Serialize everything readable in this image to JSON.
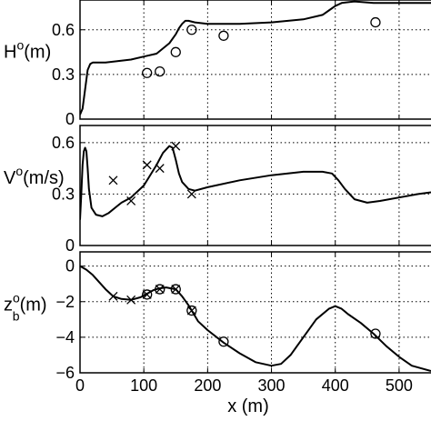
{
  "chart_data": [
    {
      "type": "line",
      "ylabel": {
        "base": "H",
        "sup": "o",
        "unit": "(m)"
      },
      "xlim": [
        0,
        550
      ],
      "ylim": [
        0,
        0.8
      ],
      "yticks": [
        0,
        0.3,
        0.6
      ],
      "ytick_labels": [
        "0",
        "0.3",
        "0.6"
      ],
      "grid": true,
      "series": [
        {
          "style": "line",
          "x": [
            0,
            4,
            8,
            12,
            16,
            20,
            30,
            40,
            60,
            80,
            100,
            120,
            140,
            150,
            155,
            160,
            165,
            170,
            180,
            200,
            250,
            300,
            350,
            380,
            390,
            400,
            410,
            430,
            460,
            500,
            550
          ],
          "y": [
            0.03,
            0.07,
            0.2,
            0.33,
            0.37,
            0.38,
            0.38,
            0.38,
            0.39,
            0.4,
            0.42,
            0.44,
            0.51,
            0.57,
            0.61,
            0.64,
            0.66,
            0.66,
            0.65,
            0.64,
            0.64,
            0.65,
            0.67,
            0.7,
            0.73,
            0.76,
            0.78,
            0.79,
            0.78,
            0.78,
            0.78
          ]
        },
        {
          "style": "circle",
          "x": [
            105,
            125,
            150,
            175,
            225,
            463
          ],
          "y": [
            0.31,
            0.32,
            0.45,
            0.6,
            0.56,
            0.65
          ]
        }
      ]
    },
    {
      "type": "line",
      "ylabel": {
        "base": "V",
        "sup": "o",
        "unit": "(m/s)"
      },
      "xlim": [
        0,
        550
      ],
      "ylim": [
        0,
        0.7
      ],
      "yticks": [
        0,
        0.3,
        0.6
      ],
      "ytick_labels": [
        "0",
        "0.3",
        "0.6"
      ],
      "grid": true,
      "series": [
        {
          "style": "line",
          "x": [
            0,
            2,
            4,
            6,
            8,
            10,
            12,
            14,
            18,
            25,
            35,
            45,
            55,
            65,
            80,
            100,
            120,
            130,
            140,
            145,
            150,
            155,
            160,
            170,
            180,
            200,
            250,
            300,
            350,
            380,
            395,
            405,
            415,
            430,
            450,
            470,
            500,
            530,
            550
          ],
          "y": [
            0.15,
            0.3,
            0.47,
            0.55,
            0.57,
            0.55,
            0.45,
            0.33,
            0.22,
            0.18,
            0.17,
            0.19,
            0.22,
            0.25,
            0.28,
            0.35,
            0.47,
            0.54,
            0.58,
            0.57,
            0.5,
            0.42,
            0.37,
            0.33,
            0.32,
            0.34,
            0.38,
            0.41,
            0.43,
            0.43,
            0.42,
            0.38,
            0.33,
            0.27,
            0.25,
            0.26,
            0.28,
            0.3,
            0.31
          ]
        },
        {
          "style": "x",
          "x": [
            52,
            80,
            105,
            125,
            150,
            175
          ],
          "y": [
            0.38,
            0.26,
            0.47,
            0.45,
            0.58,
            0.3
          ]
        }
      ]
    },
    {
      "type": "line",
      "ylabel": {
        "base": "z",
        "sub": "b",
        "sup": "o",
        "unit": "(m)"
      },
      "xlabel": "x (m)",
      "xlim": [
        0,
        550
      ],
      "ylim": [
        -6,
        0.8
      ],
      "yticks": [
        0,
        -2,
        -4,
        -6
      ],
      "ytick_labels": [
        "0",
        "−2",
        "−4",
        "−6"
      ],
      "xticks": [
        0,
        100,
        200,
        300,
        400,
        500
      ],
      "xtick_labels": [
        "0",
        "100",
        "200",
        "300",
        "400",
        "500"
      ],
      "grid": true,
      "series": [
        {
          "style": "line",
          "x": [
            0,
            10,
            20,
            30,
            40,
            52,
            65,
            80,
            95,
            105,
            115,
            125,
            135,
            150,
            160,
            170,
            175,
            185,
            200,
            225,
            250,
            275,
            300,
            315,
            330,
            350,
            370,
            390,
            400,
            410,
            420,
            440,
            460,
            480,
            500,
            520,
            550
          ],
          "y": [
            0,
            -0.2,
            -0.5,
            -0.9,
            -1.3,
            -1.7,
            -1.85,
            -1.9,
            -1.75,
            -1.55,
            -1.35,
            -1.25,
            -1.2,
            -1.3,
            -1.7,
            -2.2,
            -2.5,
            -3.1,
            -3.6,
            -4.3,
            -4.9,
            -5.4,
            -5.6,
            -5.5,
            -5.0,
            -4.0,
            -3.0,
            -2.4,
            -2.25,
            -2.4,
            -2.7,
            -3.2,
            -3.8,
            -4.5,
            -5.1,
            -5.6,
            -5.9
          ]
        },
        {
          "style": "x",
          "x": [
            52,
            80,
            105,
            125,
            150,
            175
          ],
          "y": [
            -1.7,
            -1.9,
            -1.6,
            -1.3,
            -1.3,
            -2.5
          ]
        },
        {
          "style": "circle",
          "x": [
            105,
            125,
            150,
            175,
            225,
            463
          ],
          "y": [
            -1.6,
            -1.3,
            -1.3,
            -2.5,
            -4.25,
            -3.8
          ]
        }
      ]
    }
  ]
}
